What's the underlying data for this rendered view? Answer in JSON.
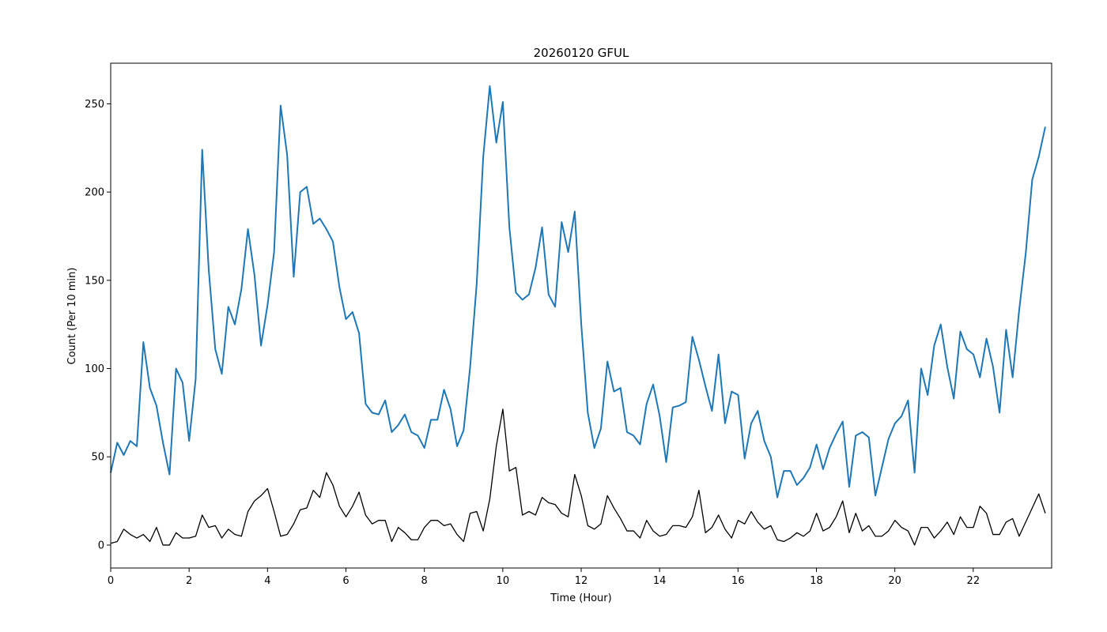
{
  "chart_data": {
    "type": "line",
    "title": "20260120 GFUL",
    "xlabel": "Time (Hour)",
    "ylabel": "Count (Per 10 min)",
    "xlim": [
      0,
      24
    ],
    "ylim": [
      -13,
      273
    ],
    "xticks": [
      0,
      2,
      4,
      6,
      8,
      10,
      12,
      14,
      16,
      18,
      20,
      22
    ],
    "yticks": [
      0,
      50,
      100,
      150,
      200,
      250
    ],
    "grid": false,
    "legend": "none",
    "x_step_hours": 0.1667,
    "series": [
      {
        "color": "#1f77b4",
        "values": [
          41,
          58,
          51,
          59,
          56,
          115,
          89,
          79,
          58,
          40,
          100,
          92,
          59,
          94,
          224,
          156,
          111,
          97,
          135,
          125,
          145,
          179,
          153,
          113,
          136,
          166,
          249,
          221,
          152,
          200,
          203,
          182,
          185,
          179,
          172,
          146,
          128,
          132,
          120,
          80,
          75,
          74,
          82,
          64,
          68,
          74,
          64,
          62,
          55,
          71,
          71,
          88,
          77,
          56,
          65,
          101,
          148,
          220,
          260,
          228,
          251,
          180,
          143,
          139,
          142,
          157,
          180,
          142,
          135,
          183,
          166,
          189,
          125,
          75,
          55,
          66,
          104,
          87,
          89,
          64,
          62,
          57,
          80,
          91,
          73,
          47,
          78,
          79,
          81,
          118,
          105,
          90,
          76,
          108,
          69,
          87,
          85,
          49,
          69,
          76,
          59,
          50,
          27,
          42,
          42,
          34,
          38,
          44,
          57,
          43,
          55,
          63,
          70,
          33,
          62,
          64,
          61,
          28,
          44,
          60,
          69,
          73,
          82,
          41,
          100,
          85,
          113,
          125,
          101,
          83,
          121,
          111,
          108,
          95,
          117,
          101,
          75,
          122,
          95,
          133,
          165,
          207,
          220,
          237
        ]
      },
      {
        "color": "#000000",
        "values": [
          1,
          2,
          9,
          6,
          4,
          6,
          2,
          10,
          0,
          0,
          7,
          4,
          4,
          5,
          17,
          10,
          11,
          4,
          9,
          6,
          5,
          19,
          25,
          28,
          32,
          19,
          5,
          6,
          12,
          20,
          21,
          31,
          27,
          41,
          34,
          22,
          16,
          22,
          30,
          17,
          12,
          14,
          14,
          2,
          10,
          7,
          3,
          3,
          10,
          14,
          14,
          11,
          12,
          6,
          2,
          18,
          19,
          8,
          26,
          56,
          77,
          42,
          44,
          17,
          19,
          17,
          27,
          24,
          23,
          18,
          16,
          40,
          28,
          11,
          9,
          12,
          28,
          21,
          15,
          8,
          8,
          4,
          14,
          8,
          5,
          6,
          11,
          11,
          10,
          16,
          31,
          7,
          10,
          17,
          9,
          4,
          14,
          12,
          19,
          13,
          9,
          11,
          3,
          2,
          4,
          7,
          5,
          8,
          18,
          8,
          10,
          16,
          25,
          7,
          18,
          8,
          11,
          5,
          5,
          8,
          14,
          10,
          8,
          0,
          10,
          10,
          4,
          8,
          13,
          6,
          16,
          10,
          10,
          22,
          18,
          6,
          6,
          13,
          15,
          5,
          13,
          21,
          29,
          18
        ]
      }
    ]
  }
}
